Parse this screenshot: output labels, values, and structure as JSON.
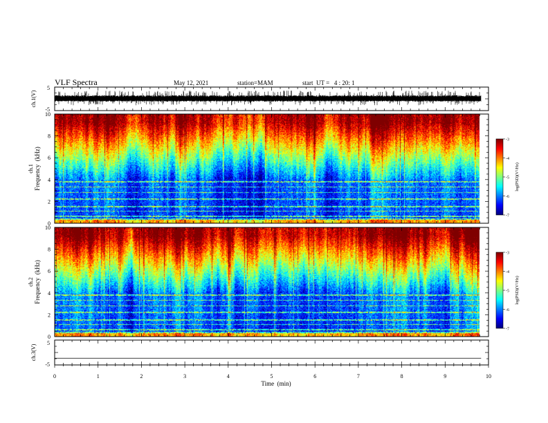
{
  "header": {
    "title": "VLF Spectra",
    "date": "May 12, 2021",
    "station": "station=MAM",
    "start": "start  UT =   4 : 20: 1"
  },
  "chart_data": {
    "type": "heatmap",
    "x_axis": {
      "label": "Time  (min)",
      "range": [
        0,
        10
      ],
      "ticks": [
        "0",
        "1",
        "2",
        "3",
        "4",
        "5",
        "6",
        "7",
        "8",
        "9",
        "10"
      ],
      "data_end": 9.83
    },
    "panels": [
      {
        "name": "ch.1 waveform",
        "type": "line",
        "ylabel": "ch.1(V)",
        "yticks": [
          "5",
          "-5"
        ],
        "ylim": [
          -5,
          5
        ],
        "envelope": [
          -1.2,
          1.6
        ]
      },
      {
        "name": "ch.1 spectrogram",
        "type": "heatmap",
        "ylabel_top": "ch.1",
        "ylabel": "Frequency  (kHz)",
        "yticks": [
          "0",
          "2",
          "4",
          "6",
          "8",
          "10"
        ],
        "ylim": [
          0,
          10
        ],
        "colorbar": {
          "label": "log(PSD)(V²/Hz)",
          "ticks": [
            "-3",
            "-4",
            "-5",
            "-6",
            "-7"
          ],
          "range": [
            -7,
            -3
          ]
        }
      },
      {
        "name": "ch.2 spectrogram",
        "type": "heatmap",
        "ylabel_top": "ch.2",
        "ylabel": "Frequency  (kHz)",
        "yticks": [
          "0",
          "2",
          "4",
          "6",
          "8",
          "10"
        ],
        "ylim": [
          0,
          10
        ],
        "colorbar": {
          "label": "log(PSD)(V²/Hz)",
          "ticks": [
            "-3",
            "-4",
            "-5",
            "-6",
            "-7"
          ],
          "range": [
            -7,
            -3
          ]
        }
      },
      {
        "name": "ch.3 waveform",
        "type": "line",
        "ylabel": "ch.3(V)",
        "yticks": [
          "5",
          "-5"
        ],
        "ylim": [
          -5,
          5
        ],
        "constant_value": -2.3
      }
    ]
  }
}
